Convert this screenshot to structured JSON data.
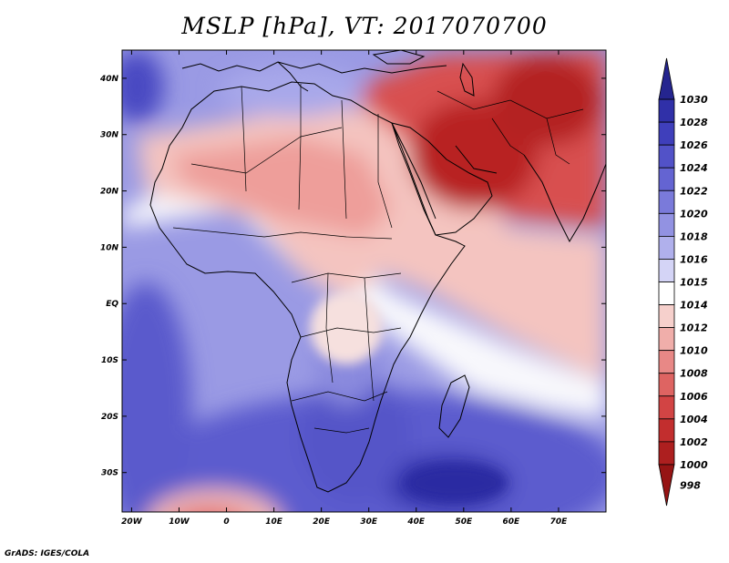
{
  "title": "MSLP [hPa], VT: 2017070700",
  "credit": "GrADS: IGES/COLA",
  "map": {
    "lat_labels": [
      "40N",
      "30N",
      "20N",
      "10N",
      "EQ",
      "10S",
      "20S",
      "30S"
    ],
    "lon_labels": [
      "20W",
      "10W",
      "0",
      "10E",
      "20E",
      "30E",
      "40E",
      "50E",
      "60E",
      "70E"
    ],
    "extent": {
      "lon_min": -22,
      "lon_max": 80,
      "lat_min": -37,
      "lat_max": 45
    }
  },
  "colorbar": {
    "labels": [
      "1030",
      "1028",
      "1026",
      "1024",
      "1022",
      "1020",
      "1018",
      "1016",
      "1015",
      "1014",
      "1012",
      "1010",
      "1008",
      "1006",
      "1004",
      "1002",
      "1000",
      "998"
    ],
    "colors": [
      "#25258f",
      "#3030a8",
      "#3f3fbb",
      "#5252c8",
      "#6464d2",
      "#7a7ada",
      "#9292e2",
      "#b0b0ec",
      "#d4d4f6",
      "#ffffff",
      "#f6d0cc",
      "#f0aeaa",
      "#e88886",
      "#de6462",
      "#d24444",
      "#c22e2e",
      "#ad1f1f",
      "#961414"
    ]
  }
}
